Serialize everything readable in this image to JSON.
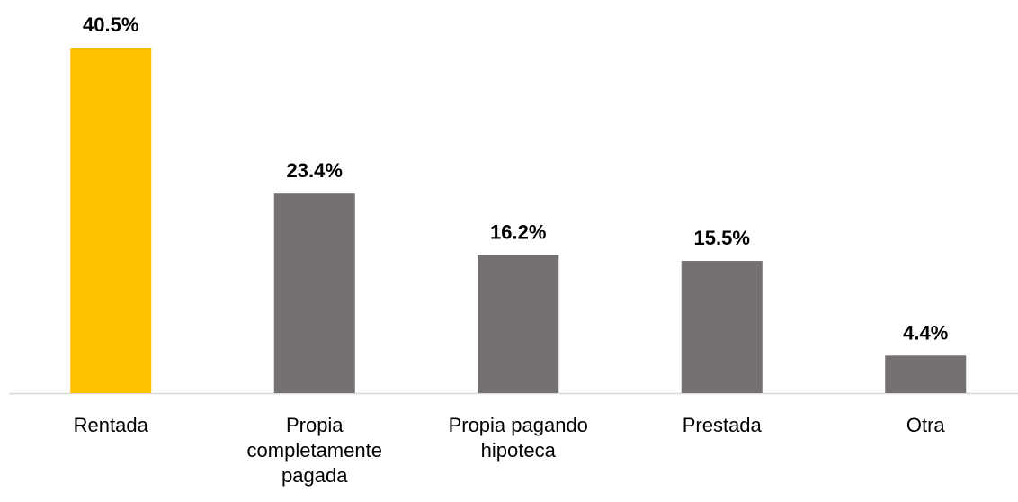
{
  "chart_data": {
    "type": "bar",
    "categories": [
      "Rentada",
      "Propia completamente pagada",
      "Propia pagando hipoteca",
      "Prestada",
      "Otra"
    ],
    "values": [
      40.5,
      23.4,
      16.2,
      15.5,
      4.4
    ],
    "value_labels": [
      "40.5%",
      "23.4%",
      "16.2%",
      "15.5%",
      "4.4%"
    ],
    "colors": [
      "#FFC000",
      "#767171",
      "#767171",
      "#767171",
      "#767171"
    ],
    "ylim": [
      0,
      45
    ],
    "grid": false
  }
}
